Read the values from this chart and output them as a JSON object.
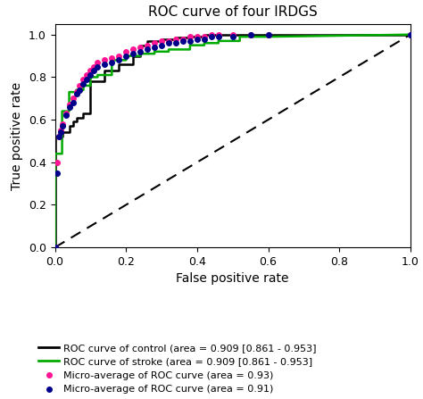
{
  "title": "ROC curve of four IRDGS",
  "xlabel": "False positive rate",
  "ylabel": "True positive rate",
  "xlim": [
    0.0,
    1.0
  ],
  "ylim": [
    0.0,
    1.05
  ],
  "xticks": [
    0.0,
    0.2,
    0.4,
    0.6,
    0.8,
    1.0
  ],
  "yticks": [
    0.0,
    0.2,
    0.4,
    0.6,
    0.8,
    1.0
  ],
  "legend_labels": [
    "ROC curve of control (area = 0.909 [0.861 - 0.953]",
    "ROC curve of stroke (area = 0.909 [0.861 - 0.953]",
    "Micro-average of ROC curve (area = 0.93)",
    "Micro-average of ROC curve (area = 0.91)"
  ],
  "black_curve_fpr": [
    0.0,
    0.0,
    0.02,
    0.02,
    0.04,
    0.04,
    0.05,
    0.05,
    0.06,
    0.06,
    0.08,
    0.08,
    0.1,
    0.1,
    0.14,
    0.14,
    0.18,
    0.18,
    0.22,
    0.22,
    0.24,
    0.24,
    0.26,
    0.26,
    0.3,
    0.3,
    0.34,
    0.34,
    0.38,
    0.38,
    0.42,
    0.42,
    0.5,
    0.5,
    0.6,
    1.0
  ],
  "black_curve_tpr": [
    0.0,
    0.52,
    0.52,
    0.54,
    0.54,
    0.57,
    0.57,
    0.59,
    0.59,
    0.61,
    0.61,
    0.63,
    0.63,
    0.78,
    0.78,
    0.83,
    0.83,
    0.86,
    0.86,
    0.9,
    0.9,
    0.95,
    0.95,
    0.97,
    0.97,
    0.98,
    0.98,
    0.985,
    0.985,
    0.99,
    0.99,
    1.0,
    1.0,
    1.0,
    1.0,
    1.0
  ],
  "green_curve_fpr": [
    0.0,
    0.0,
    0.02,
    0.02,
    0.04,
    0.04,
    0.06,
    0.06,
    0.08,
    0.08,
    0.1,
    0.1,
    0.12,
    0.12,
    0.16,
    0.16,
    0.2,
    0.2,
    0.24,
    0.24,
    0.28,
    0.28,
    0.32,
    0.32,
    0.38,
    0.38,
    0.42,
    0.42,
    0.46,
    0.46,
    0.52,
    0.52,
    0.6,
    1.0
  ],
  "green_curve_tpr": [
    0.0,
    0.44,
    0.44,
    0.64,
    0.64,
    0.73,
    0.73,
    0.74,
    0.74,
    0.76,
    0.76,
    0.8,
    0.8,
    0.81,
    0.81,
    0.88,
    0.88,
    0.9,
    0.9,
    0.91,
    0.91,
    0.92,
    0.92,
    0.93,
    0.93,
    0.95,
    0.95,
    0.96,
    0.96,
    0.97,
    0.97,
    0.99,
    0.99,
    1.0
  ],
  "pink_curve_fpr": [
    0.0,
    0.005,
    0.01,
    0.015,
    0.02,
    0.03,
    0.04,
    0.05,
    0.06,
    0.07,
    0.08,
    0.09,
    0.1,
    0.11,
    0.12,
    0.14,
    0.16,
    0.18,
    0.2,
    0.22,
    0.24,
    0.26,
    0.28,
    0.3,
    0.32,
    0.34,
    0.36,
    0.38,
    0.4,
    0.42,
    0.44,
    0.46,
    0.5,
    0.55,
    0.6,
    1.0
  ],
  "pink_curve_tpr": [
    0.0,
    0.4,
    0.52,
    0.55,
    0.58,
    0.63,
    0.67,
    0.7,
    0.73,
    0.76,
    0.79,
    0.81,
    0.83,
    0.85,
    0.87,
    0.88,
    0.89,
    0.9,
    0.92,
    0.93,
    0.94,
    0.95,
    0.96,
    0.97,
    0.97,
    0.98,
    0.98,
    0.99,
    0.99,
    0.99,
    1.0,
    1.0,
    1.0,
    1.0,
    1.0,
    1.0
  ],
  "navy_curve_fpr": [
    0.0,
    0.005,
    0.01,
    0.015,
    0.02,
    0.03,
    0.04,
    0.05,
    0.06,
    0.07,
    0.08,
    0.09,
    0.1,
    0.11,
    0.12,
    0.14,
    0.16,
    0.18,
    0.2,
    0.22,
    0.24,
    0.26,
    0.28,
    0.3,
    0.32,
    0.34,
    0.36,
    0.38,
    0.4,
    0.42,
    0.44,
    0.46,
    0.5,
    0.55,
    0.6,
    1.0
  ],
  "navy_curve_tpr": [
    0.0,
    0.35,
    0.52,
    0.54,
    0.57,
    0.62,
    0.66,
    0.68,
    0.72,
    0.74,
    0.77,
    0.79,
    0.81,
    0.83,
    0.85,
    0.86,
    0.87,
    0.88,
    0.9,
    0.91,
    0.92,
    0.93,
    0.94,
    0.95,
    0.96,
    0.96,
    0.97,
    0.97,
    0.98,
    0.98,
    0.99,
    0.99,
    0.99,
    1.0,
    1.0,
    1.0
  ],
  "black_color": "#000000",
  "green_color": "#00aa00",
  "pink_color": "#FF1493",
  "navy_color": "#00008B",
  "diag_color": "#000000",
  "title_fontsize": 11,
  "axis_fontsize": 10,
  "tick_fontsize": 9,
  "legend_fontsize": 8
}
